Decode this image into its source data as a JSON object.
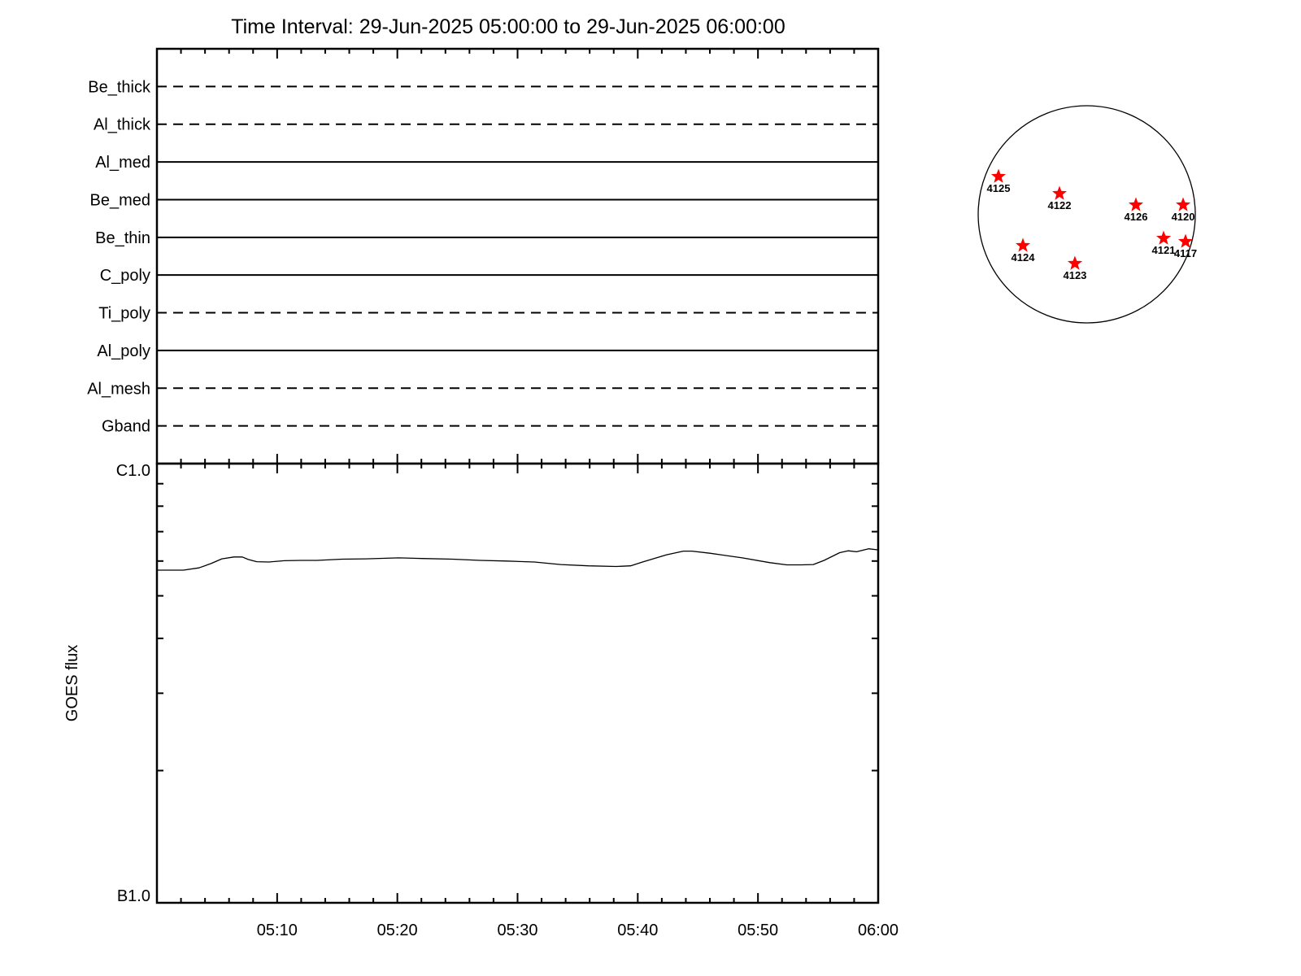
{
  "title": "Time Interval: 29-Jun-2025 05:00:00 to 29-Jun-2025 06:00:00",
  "colors": {
    "foreground": "#000000",
    "background": "#ffffff",
    "active_region_star": "#ff0000"
  },
  "chart_data": [
    {
      "type": "line",
      "panel": "xrt-filter-timeline",
      "description": "Instrument filter rows spanning the full time interval; dashed or solid horizontal line per filter",
      "x_range_minutes": [
        0,
        60
      ],
      "rows": [
        {
          "label": "Be_thick",
          "style": "dashed"
        },
        {
          "label": "Al_thick",
          "style": "dashed"
        },
        {
          "label": "Al_med",
          "style": "solid"
        },
        {
          "label": "Be_med",
          "style": "solid"
        },
        {
          "label": "Be_thin",
          "style": "solid"
        },
        {
          "label": "C_poly",
          "style": "solid"
        },
        {
          "label": "Ti_poly",
          "style": "dashed"
        },
        {
          "label": "Al_poly",
          "style": "solid"
        },
        {
          "label": "Al_mesh",
          "style": "dashed"
        },
        {
          "label": "Gband",
          "style": "dashed"
        }
      ]
    },
    {
      "type": "line",
      "panel": "goes-flux",
      "ylabel": "GOES flux",
      "y_top_label": "C1.0",
      "y_bottom_label": "B1.0",
      "yscale": "log",
      "ylim_wm2": [
        1e-07,
        1e-06
      ],
      "flux_scale_wm2": 1e-07,
      "grid": false,
      "xticks": [
        {
          "minutes": 10,
          "label": "05:10"
        },
        {
          "minutes": 20,
          "label": "05:20"
        },
        {
          "minutes": 30,
          "label": "05:30"
        },
        {
          "minutes": 40,
          "label": "05:40"
        },
        {
          "minutes": 50,
          "label": "05:50"
        },
        {
          "minutes": 60,
          "label": "06:00"
        }
      ],
      "minor_tick_step_minutes": 2,
      "y_minor_ticks_e7": [
        2,
        3,
        4,
        5,
        6,
        7,
        8,
        9
      ],
      "series": [
        {
          "name": "GOES flux",
          "points_min_fluxB": [
            [
              0,
              5.72
            ],
            [
              2.2,
              5.72
            ],
            [
              3.5,
              5.79
            ],
            [
              4.5,
              5.92
            ],
            [
              5.4,
              6.07
            ],
            [
              6.4,
              6.13
            ],
            [
              7.1,
              6.13
            ],
            [
              7.6,
              6.05
            ],
            [
              8.3,
              5.98
            ],
            [
              9.3,
              5.97
            ],
            [
              10.6,
              6.01
            ],
            [
              12,
              6.02
            ],
            [
              13.3,
              6.02
            ],
            [
              15.4,
              6.06
            ],
            [
              17.4,
              6.07
            ],
            [
              20.1,
              6.1
            ],
            [
              22.1,
              6.08
            ],
            [
              24.6,
              6.06
            ],
            [
              26.9,
              6.02
            ],
            [
              29.1,
              6.0
            ],
            [
              31.4,
              5.97
            ],
            [
              33.6,
              5.89
            ],
            [
              35.9,
              5.85
            ],
            [
              38.2,
              5.83
            ],
            [
              39.4,
              5.85
            ],
            [
              40.4,
              5.97
            ],
            [
              41.1,
              6.05
            ],
            [
              42.4,
              6.2
            ],
            [
              43.8,
              6.32
            ],
            [
              44.5,
              6.32
            ],
            [
              46,
              6.25
            ],
            [
              48.7,
              6.1
            ],
            [
              51,
              5.95
            ],
            [
              52.4,
              5.88
            ],
            [
              53.6,
              5.88
            ],
            [
              54.6,
              5.89
            ],
            [
              55.5,
              6.02
            ],
            [
              56.8,
              6.27
            ],
            [
              57.5,
              6.33
            ],
            [
              58.2,
              6.3
            ],
            [
              59.2,
              6.4
            ],
            [
              60,
              6.36
            ]
          ]
        }
      ]
    },
    {
      "type": "scatter",
      "panel": "solar-disk-map",
      "marker": "star",
      "description": "Full solar disk outline with active regions; x,y are offsets from disk center in units of disk radius",
      "active_regions": [
        {
          "label": "4125",
          "x": -0.813,
          "y": -0.348
        },
        {
          "label": "4122",
          "x": -0.251,
          "y": -0.191
        },
        {
          "label": "4126",
          "x": 0.453,
          "y": -0.086
        },
        {
          "label": "4120",
          "x": 0.888,
          "y": -0.086
        },
        {
          "label": "4124",
          "x": -0.588,
          "y": 0.288
        },
        {
          "label": "4121",
          "x": 0.708,
          "y": 0.221
        },
        {
          "label": "4117",
          "x": 0.91,
          "y": 0.251
        },
        {
          "label": "4123",
          "x": -0.109,
          "y": 0.453
        }
      ]
    }
  ]
}
